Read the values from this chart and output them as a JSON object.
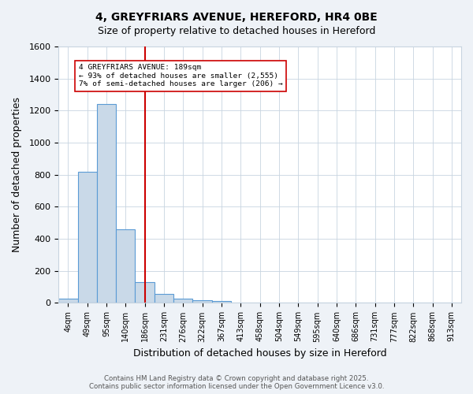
{
  "title": "4, GREYFRIARS AVENUE, HEREFORD, HR4 0BE",
  "subtitle": "Size of property relative to detached houses in Hereford",
  "xlabel": "Distribution of detached houses by size in Hereford",
  "ylabel": "Number of detached properties",
  "bin_labels": [
    "4sqm",
    "49sqm",
    "95sqm",
    "140sqm",
    "186sqm",
    "231sqm",
    "276sqm",
    "322sqm",
    "367sqm",
    "413sqm",
    "458sqm",
    "504sqm",
    "549sqm",
    "595sqm",
    "640sqm",
    "686sqm",
    "731sqm",
    "777sqm",
    "822sqm",
    "868sqm",
    "913sqm"
  ],
  "bar_values": [
    25,
    820,
    1240,
    460,
    130,
    58,
    25,
    15,
    10,
    0,
    0,
    0,
    0,
    0,
    0,
    0,
    0,
    0,
    0,
    0,
    0
  ],
  "bar_color": "#c9d9e8",
  "bar_edge_color": "#5b9bd5",
  "red_line_x": 4.0,
  "annotation_text": "4 GREYFRIARS AVENUE: 189sqm\n← 93% of detached houses are smaller (2,555)\n7% of semi-detached houses are larger (206) →",
  "annotation_box_color": "#ffffff",
  "annotation_box_edge": "#cc0000",
  "ylim": [
    0,
    1600
  ],
  "yticks": [
    0,
    200,
    400,
    600,
    800,
    1000,
    1200,
    1400,
    1600
  ],
  "footer_text": "Contains HM Land Registry data © Crown copyright and database right 2025.\nContains public sector information licensed under the Open Government Licence v3.0.",
  "bg_color": "#eef2f7",
  "plot_bg_color": "#ffffff",
  "grid_color": "#c8d4e0"
}
